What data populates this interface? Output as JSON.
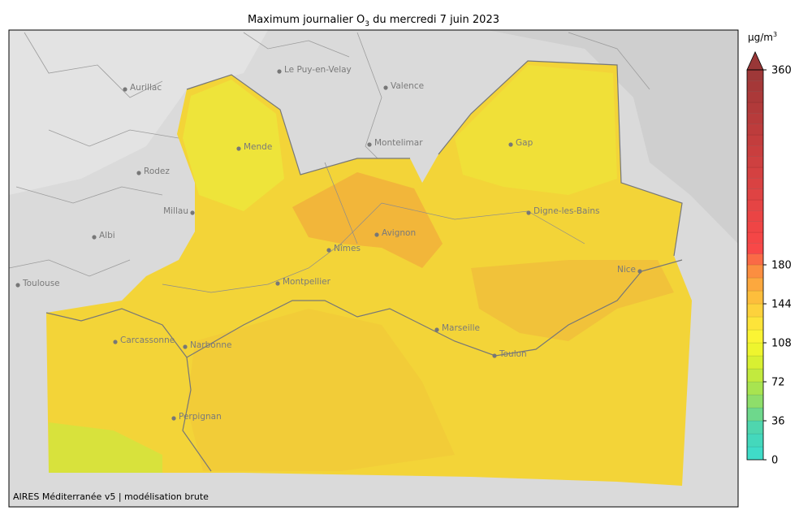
{
  "title": {
    "text": "Maximum journalier O",
    "subscript": "3",
    "suffix": " du mercredi 7 juin 2023"
  },
  "colorbar": {
    "unit": "µg/m",
    "unit_superscript": "3",
    "lim": [
      0,
      360
    ],
    "ticks": [
      0,
      36,
      72,
      108,
      144,
      180,
      360
    ],
    "bins": [
      0,
      12,
      24,
      36,
      48,
      60,
      72,
      84,
      96,
      108,
      120,
      132,
      144,
      156,
      168,
      180,
      190,
      200,
      210,
      220,
      230,
      240,
      250,
      260,
      270,
      280,
      290,
      300,
      310,
      320,
      330,
      340,
      350,
      360
    ],
    "colors": [
      "#3fdcc8",
      "#44d8bc",
      "#4fd6ae",
      "#6ed88c",
      "#8ede6a",
      "#a8e450",
      "#c2ea3e",
      "#d8f032",
      "#eef52e",
      "#fbf434",
      "#fde43a",
      "#fdd23c",
      "#fdbe3c",
      "#fca83e",
      "#fb8e40",
      "#fa6a46",
      "#f84848",
      "#f44646",
      "#ef4545",
      "#ea4444",
      "#e54444",
      "#df4343",
      "#d94242",
      "#d44141",
      "#ce4040",
      "#c93e3e",
      "#c33d3d",
      "#bd3c3c",
      "#b73b3b",
      "#b13a3a",
      "#ab3939",
      "#a53838",
      "#9f3838"
    ],
    "extend_color": "#993737"
  },
  "cities": [
    "Aurillac",
    "Le Puy-en-Velay",
    "Valence",
    "Mende",
    "Montelimar",
    "Gap",
    "Rodez",
    "Millau",
    "Digne-les-Bains",
    "Albi",
    "Nîmes",
    "Avignon",
    "Nice",
    "Toulouse",
    "Montpellier",
    "Carcassonne",
    "Narbonne",
    "Marseille",
    "Toulon",
    "Perpignan"
  ],
  "credit": "AIRES Méditerranée v5 | modélisation brute"
}
